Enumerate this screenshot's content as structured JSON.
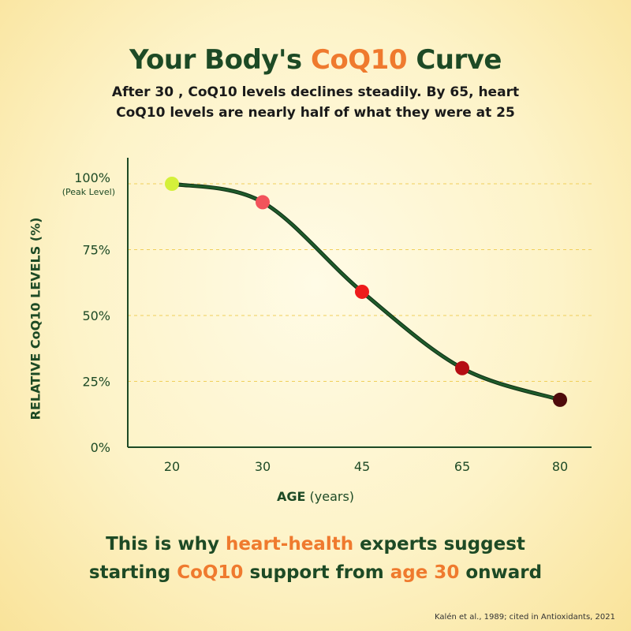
{
  "header": {
    "title_pre": "Your Body's ",
    "title_accent": "CoQ10",
    "title_post": " Curve",
    "subtitle_line1": "After 30 , CoQ10 levels declines steadily. By 65, heart",
    "subtitle_line2": "CoQ10 levels are nearly half of what they were at 25"
  },
  "chart_data": {
    "type": "line",
    "xlabel_bold": "AGE",
    "xlabel_rest": "(years)",
    "ylabel": "RELATIVE CoQ10 LEVELS (%)",
    "x": [
      20,
      30,
      45,
      65,
      80
    ],
    "x_tick_labels": [
      "20",
      "30",
      "45",
      "65",
      "80"
    ],
    "series": [
      {
        "values": [
          100,
          93,
          59,
          30,
          18
        ]
      }
    ],
    "point_colors": [
      "#d4f03a",
      "#f2535b",
      "#ee1b1b",
      "#b50d13",
      "#4e0b0b"
    ],
    "line_color": "#1e5b2a",
    "y_ticks": [
      {
        "value": 100,
        "label": "100%",
        "sublabel": "(Peak Level)"
      },
      {
        "value": 75,
        "label": "75%"
      },
      {
        "value": 50,
        "label": "50%"
      },
      {
        "value": 25,
        "label": "25%"
      },
      {
        "value": 0,
        "label": "0%"
      }
    ],
    "ylim": [
      0,
      100
    ],
    "grid": "dashed horizontal"
  },
  "footer": {
    "l1_a": "This is why ",
    "l1_accent": "heart-health",
    "l1_b": " experts suggest",
    "l2_a": "starting ",
    "l2_accent1": "CoQ10",
    "l2_b": " support from ",
    "l2_accent2": "age 30",
    "l2_c": " onward"
  },
  "citation": "Kalén et al., 1989; cited in Antioxidants, 2021",
  "colors": {
    "dark_green": "#1d4a25",
    "orange": "#ef7a2e"
  }
}
